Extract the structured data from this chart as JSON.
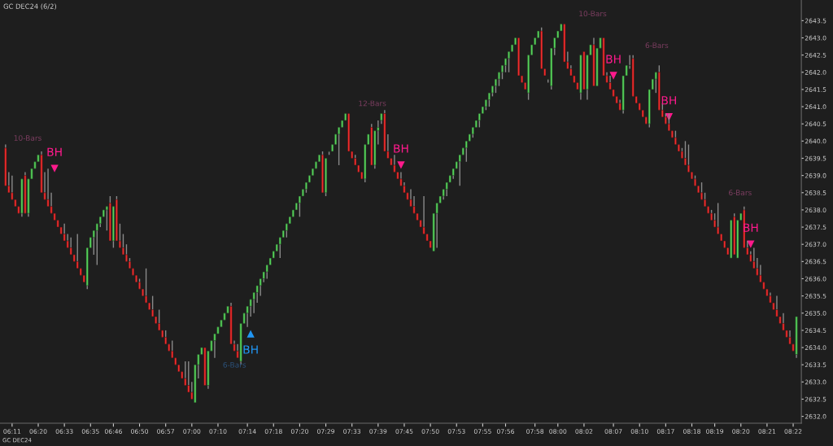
{
  "chart_data": {
    "type": "candlestick",
    "title": "GC DEC24 (6/2)",
    "categories": [
      null,
      null,
      "06:11",
      null,
      null,
      null,
      null,
      null,
      null,
      null,
      "06:20",
      null,
      null,
      null,
      null,
      null,
      null,
      null,
      "06:33",
      null,
      null,
      null,
      null,
      null,
      null,
      null,
      "06:35",
      null,
      null,
      null,
      null,
      null,
      null,
      "06:46",
      null,
      null,
      null,
      null,
      null,
      null,
      null,
      "06:50",
      null,
      null,
      null,
      null,
      null,
      null,
      null,
      "06:57",
      null,
      null,
      null,
      null,
      null,
      null,
      null,
      "07:00",
      null,
      null,
      null,
      null,
      null,
      null,
      null,
      "07:10",
      null,
      null,
      null,
      null,
      null,
      null,
      null,
      null,
      "07:14",
      null,
      null,
      null,
      null,
      null,
      null,
      null,
      "07:18",
      null,
      null,
      null,
      null,
      null,
      null,
      null,
      "07:20",
      null,
      null,
      null,
      null,
      null,
      null,
      null,
      "07:29",
      null,
      null,
      null,
      null,
      null,
      null,
      null,
      "07:33",
      null,
      null,
      null,
      null,
      null,
      null,
      null,
      "07:39",
      null,
      null,
      null,
      null,
      null,
      null,
      null,
      "07:45",
      null,
      null,
      null,
      null,
      null,
      null,
      null,
      "07:50",
      null,
      null,
      null,
      null,
      null,
      null,
      null,
      "07:53",
      null,
      null,
      null,
      null,
      null,
      null,
      null,
      "07:55",
      null,
      null,
      null,
      null,
      null,
      null,
      "07:56",
      null,
      null,
      null,
      null,
      null,
      null,
      null,
      null,
      "07:58",
      null,
      null,
      null,
      null,
      null,
      null,
      "08:00",
      null,
      null,
      null,
      null,
      null,
      null,
      null,
      "08:02",
      null,
      null,
      null,
      null,
      null,
      null,
      null,
      null,
      "08:07",
      null,
      null,
      null,
      null,
      null,
      null,
      null,
      "08:10",
      null,
      null,
      null,
      null,
      null,
      null,
      null,
      "08:17",
      null,
      null,
      null,
      null,
      null,
      null,
      null,
      "08:18",
      null,
      null,
      null,
      null,
      null,
      null,
      "08:19",
      null,
      null,
      null,
      null,
      null,
      null,
      null,
      "08:20",
      null,
      null,
      null,
      null,
      null,
      null,
      null,
      "08:21",
      null,
      null,
      null,
      null,
      null,
      null,
      null,
      "08:22",
      null
    ],
    "series": [
      {
        "ohlc": [
          [
            2639.8,
            2639.9,
            2638.7,
            2638.7
          ],
          [
            2638.7,
            2639.1,
            2638.5,
            2638.5
          ],
          [
            2638.5,
            2639.0,
            2638.3,
            2638.3
          ],
          [
            2638.3,
            2638.3,
            2638.1,
            2638.1
          ],
          [
            2638.1,
            2638.1,
            2637.9,
            2637.9
          ],
          [
            2637.9,
            2638.9,
            2637.8,
            2638.9
          ],
          [
            2639.0,
            2639.1,
            2637.9,
            2637.9
          ],
          [
            2637.9,
            2638.9,
            2637.8,
            2638.9
          ],
          [
            2638.9,
            2639.2,
            2638.9,
            2639.2
          ],
          [
            2639.2,
            2639.4,
            2639.2,
            2639.4
          ],
          [
            2639.4,
            2639.6,
            2639.4,
            2639.6
          ],
          [
            2639.6,
            2639.7,
            2638.5,
            2638.5
          ],
          [
            2638.5,
            2639.1,
            2638.3,
            2638.3
          ],
          [
            2638.3,
            2639.2,
            2638.1,
            2638.1
          ],
          [
            2638.1,
            2638.5,
            2637.9,
            2637.9
          ],
          [
            2637.9,
            2637.9,
            2637.7,
            2637.7
          ],
          [
            2637.7,
            2637.7,
            2637.5,
            2637.5
          ],
          [
            2637.5,
            2637.5,
            2637.3,
            2637.3
          ],
          [
            2637.3,
            2637.6,
            2637.1,
            2637.1
          ],
          [
            2637.1,
            2637.3,
            2636.9,
            2636.9
          ],
          [
            2636.9,
            2637.2,
            2636.7,
            2636.7
          ],
          [
            2636.7,
            2636.7,
            2636.5,
            2636.5
          ],
          [
            2636.5,
            2637.3,
            2636.3,
            2636.3
          ],
          [
            2636.3,
            2636.3,
            2636.1,
            2636.1
          ],
          [
            2636.1,
            2636.1,
            2635.9,
            2635.9
          ],
          [
            2635.8,
            2636.9,
            2635.7,
            2636.9
          ],
          [
            2636.9,
            2637.2,
            2636.9,
            2637.2
          ],
          [
            2637.2,
            2637.4,
            2636.7,
            2637.4
          ],
          [
            2637.4,
            2637.6,
            2636.4,
            2637.6
          ],
          [
            2637.6,
            2637.8,
            2637.5,
            2637.8
          ],
          [
            2637.8,
            2638.0,
            2637.8,
            2638.0
          ],
          [
            2638.0,
            2638.1,
            2637.4,
            2638.1
          ],
          [
            2638.2,
            2638.4,
            2637.1,
            2637.1
          ],
          [
            2637.1,
            2638.1,
            2636.9,
            2638.1
          ],
          [
            2638.3,
            2638.4,
            2637.1,
            2637.1
          ],
          [
            2637.1,
            2637.6,
            2636.9,
            2636.9
          ],
          [
            2636.9,
            2637.3,
            2636.7,
            2636.7
          ],
          [
            2636.7,
            2637.0,
            2636.5,
            2636.5
          ],
          [
            2636.5,
            2636.6,
            2636.3,
            2636.3
          ],
          [
            2636.3,
            2636.3,
            2636.1,
            2636.1
          ],
          [
            2636.1,
            2636.1,
            2635.9,
            2635.9
          ],
          [
            2635.9,
            2636.0,
            2635.7,
            2635.7
          ],
          [
            2635.7,
            2635.7,
            2635.5,
            2635.5
          ],
          [
            2635.5,
            2636.3,
            2635.3,
            2635.3
          ],
          [
            2635.3,
            2635.3,
            2635.1,
            2635.1
          ],
          [
            2635.1,
            2635.5,
            2634.9,
            2634.9
          ],
          [
            2634.9,
            2634.9,
            2634.7,
            2634.7
          ],
          [
            2634.7,
            2635.1,
            2634.5,
            2634.5
          ],
          [
            2634.5,
            2634.5,
            2634.3,
            2634.3
          ],
          [
            2634.3,
            2634.5,
            2634.1,
            2634.1
          ],
          [
            2634.1,
            2634.1,
            2633.9,
            2633.9
          ],
          [
            2633.9,
            2634.2,
            2633.7,
            2633.7
          ],
          [
            2633.7,
            2633.7,
            2633.5,
            2633.5
          ],
          [
            2633.5,
            2633.5,
            2633.3,
            2633.3
          ],
          [
            2633.3,
            2633.3,
            2633.1,
            2633.1
          ],
          [
            2633.1,
            2633.6,
            2632.9,
            2632.9
          ],
          [
            2632.9,
            2633.6,
            2632.7,
            2632.7
          ],
          [
            2632.7,
            2633.0,
            2632.5,
            2632.5
          ],
          [
            2632.4,
            2633.5,
            2632.4,
            2633.5
          ],
          [
            2633.5,
            2633.8,
            2633.1,
            2633.8
          ],
          [
            2633.8,
            2634.0,
            2633.8,
            2634.0
          ],
          [
            2634.0,
            2634.0,
            2632.9,
            2632.9
          ],
          [
            2632.9,
            2633.9,
            2632.8,
            2633.9
          ],
          [
            2633.9,
            2634.2,
            2633.9,
            2634.2
          ],
          [
            2634.2,
            2634.4,
            2633.7,
            2634.4
          ],
          [
            2634.4,
            2634.6,
            2634.4,
            2634.6
          ],
          [
            2634.6,
            2634.8,
            2634.6,
            2634.8
          ],
          [
            2634.8,
            2635.0,
            2634.8,
            2635.0
          ],
          [
            2635.0,
            2635.2,
            2635.0,
            2635.2
          ],
          [
            2635.2,
            2635.3,
            2634.1,
            2634.1
          ],
          [
            2634.1,
            2634.2,
            2633.9,
            2633.9
          ],
          [
            2633.9,
            2634.1,
            2633.7,
            2633.7
          ],
          [
            2633.6,
            2634.7,
            2633.5,
            2634.7
          ],
          [
            2634.7,
            2635.0,
            2634.7,
            2635.0
          ],
          [
            2635.0,
            2635.2,
            2634.6,
            2635.2
          ],
          [
            2635.2,
            2635.4,
            2634.9,
            2635.4
          ],
          [
            2635.4,
            2635.6,
            2635.0,
            2635.6
          ],
          [
            2635.6,
            2635.8,
            2635.3,
            2635.8
          ],
          [
            2635.8,
            2636.0,
            2635.5,
            2636.0
          ],
          [
            2636.0,
            2636.2,
            2635.9,
            2636.2
          ],
          [
            2636.2,
            2636.4,
            2636.0,
            2636.4
          ],
          [
            2636.4,
            2636.6,
            2636.4,
            2636.6
          ],
          [
            2636.6,
            2636.8,
            2636.6,
            2636.8
          ],
          [
            2636.8,
            2637.0,
            2636.8,
            2637.0
          ],
          [
            2637.0,
            2637.2,
            2636.6,
            2637.2
          ],
          [
            2637.2,
            2637.4,
            2637.2,
            2637.4
          ],
          [
            2637.4,
            2637.6,
            2637.2,
            2637.6
          ],
          [
            2637.6,
            2637.8,
            2637.6,
            2637.8
          ],
          [
            2637.8,
            2638.0,
            2637.8,
            2638.0
          ],
          [
            2638.0,
            2638.2,
            2638.0,
            2638.2
          ],
          [
            2638.2,
            2638.4,
            2637.8,
            2638.4
          ],
          [
            2638.4,
            2638.6,
            2638.4,
            2638.6
          ],
          [
            2638.6,
            2638.8,
            2638.5,
            2638.8
          ],
          [
            2638.8,
            2639.0,
            2638.8,
            2639.0
          ],
          [
            2639.0,
            2639.2,
            2639.0,
            2639.2
          ],
          [
            2639.2,
            2639.4,
            2639.2,
            2639.4
          ],
          [
            2639.4,
            2639.6,
            2639.4,
            2639.6
          ],
          [
            2639.6,
            2639.7,
            2638.5,
            2638.5
          ],
          [
            2638.5,
            2639.5,
            2638.4,
            2639.5
          ],
          [
            2639.7,
            2639.7,
            2639.6,
            2639.7
          ],
          [
            2639.7,
            2639.9,
            2639.7,
            2639.9
          ],
          [
            2639.9,
            2640.2,
            2639.9,
            2640.2
          ],
          [
            2640.2,
            2640.4,
            2639.3,
            2640.4
          ],
          [
            2640.4,
            2640.6,
            2640.4,
            2640.6
          ],
          [
            2640.6,
            2640.8,
            2640.6,
            2640.8
          ],
          [
            2640.8,
            2640.8,
            2639.7,
            2639.7
          ],
          [
            2639.7,
            2639.7,
            2639.5,
            2639.5
          ],
          [
            2639.5,
            2639.6,
            2639.3,
            2639.3
          ],
          [
            2639.3,
            2639.3,
            2639.1,
            2639.1
          ],
          [
            2639.1,
            2639.1,
            2638.9,
            2638.9
          ],
          [
            2638.9,
            2639.9,
            2638.8,
            2639.9
          ],
          [
            2639.9,
            2640.2,
            2639.9,
            2640.2
          ],
          [
            2640.4,
            2640.5,
            2639.3,
            2639.3
          ],
          [
            2639.3,
            2640.3,
            2639.2,
            2640.3
          ],
          [
            2640.3,
            2640.6,
            2639.9,
            2640.4
          ],
          [
            2640.6,
            2640.8,
            2640.5,
            2640.8
          ],
          [
            2640.8,
            2640.9,
            2639.7,
            2639.7
          ],
          [
            2639.7,
            2640.2,
            2639.5,
            2639.5
          ],
          [
            2639.5,
            2639.5,
            2639.3,
            2639.3
          ],
          [
            2639.3,
            2639.6,
            2639.1,
            2639.1
          ],
          [
            2639.1,
            2639.1,
            2638.9,
            2638.9
          ],
          [
            2638.9,
            2639.1,
            2638.7,
            2638.7
          ],
          [
            2638.7,
            2638.8,
            2638.5,
            2638.5
          ],
          [
            2638.5,
            2638.5,
            2638.3,
            2638.3
          ],
          [
            2638.3,
            2638.6,
            2638.1,
            2638.1
          ],
          [
            2638.1,
            2638.4,
            2637.9,
            2637.9
          ],
          [
            2637.9,
            2637.9,
            2637.7,
            2637.7
          ],
          [
            2637.7,
            2637.7,
            2637.5,
            2637.5
          ],
          [
            2637.5,
            2638.4,
            2637.3,
            2637.3
          ],
          [
            2637.3,
            2637.3,
            2637.1,
            2637.1
          ],
          [
            2637.1,
            2637.1,
            2636.9,
            2636.9
          ],
          [
            2636.8,
            2637.9,
            2636.8,
            2637.9
          ],
          [
            2637.9,
            2638.2,
            2636.9,
            2638.2
          ],
          [
            2638.2,
            2638.4,
            2638.2,
            2638.4
          ],
          [
            2638.4,
            2638.6,
            2638.3,
            2638.6
          ],
          [
            2638.6,
            2638.8,
            2638.4,
            2638.8
          ],
          [
            2638.8,
            2639.0,
            2638.8,
            2639.0
          ],
          [
            2639.0,
            2639.2,
            2638.9,
            2639.2
          ],
          [
            2639.2,
            2639.4,
            2639.2,
            2639.4
          ],
          [
            2639.4,
            2639.6,
            2638.7,
            2639.6
          ],
          [
            2639.6,
            2639.8,
            2639.6,
            2639.8
          ],
          [
            2639.8,
            2640.0,
            2639.4,
            2640.0
          ],
          [
            2640.0,
            2640.2,
            2640.0,
            2640.2
          ],
          [
            2640.2,
            2640.4,
            2640.1,
            2640.4
          ],
          [
            2640.4,
            2640.6,
            2640.4,
            2640.6
          ],
          [
            2640.6,
            2640.8,
            2640.4,
            2640.8
          ],
          [
            2640.8,
            2641.0,
            2640.8,
            2641.0
          ],
          [
            2641.0,
            2641.2,
            2640.9,
            2641.2
          ],
          [
            2641.2,
            2641.4,
            2641.0,
            2641.4
          ],
          [
            2641.4,
            2641.6,
            2641.3,
            2641.6
          ],
          [
            2641.6,
            2641.8,
            2641.4,
            2641.8
          ],
          [
            2641.8,
            2642.0,
            2641.6,
            2642.0
          ],
          [
            2642.0,
            2642.2,
            2641.8,
            2642.2
          ],
          [
            2642.2,
            2642.4,
            2642.0,
            2642.4
          ],
          [
            2642.4,
            2642.6,
            2642.0,
            2642.6
          ],
          [
            2642.6,
            2642.8,
            2642.6,
            2642.8
          ],
          [
            2642.8,
            2643.0,
            2642.8,
            2643.0
          ],
          [
            2643.0,
            2643.0,
            2641.9,
            2641.9
          ],
          [
            2641.9,
            2641.9,
            2641.7,
            2641.7
          ],
          [
            2641.7,
            2641.7,
            2641.5,
            2641.5
          ],
          [
            2641.4,
            2642.5,
            2641.2,
            2642.5
          ],
          [
            2642.5,
            2642.8,
            2642.5,
            2642.8
          ],
          [
            2642.8,
            2643.0,
            2642.8,
            2643.0
          ],
          [
            2643.0,
            2643.2,
            2643.0,
            2643.2
          ],
          [
            2643.2,
            2643.3,
            2642.1,
            2642.1
          ],
          [
            2642.1,
            2642.1,
            2641.9,
            2641.9
          ],
          [
            2641.8,
            2641.8,
            2641.7,
            2641.8
          ],
          [
            2641.6,
            2642.7,
            2641.5,
            2642.7
          ],
          [
            2642.7,
            2643.0,
            2642.5,
            2643.0
          ],
          [
            2643.0,
            2643.2,
            2643.0,
            2643.2
          ],
          [
            2643.2,
            2643.4,
            2643.2,
            2643.4
          ],
          [
            2643.4,
            2643.4,
            2642.3,
            2642.3
          ],
          [
            2642.3,
            2642.6,
            2642.1,
            2642.1
          ],
          [
            2642.1,
            2642.2,
            2641.9,
            2641.9
          ],
          [
            2641.9,
            2641.9,
            2641.7,
            2641.7
          ],
          [
            2641.7,
            2641.7,
            2641.5,
            2641.5
          ],
          [
            2641.4,
            2642.5,
            2641.2,
            2642.5
          ],
          [
            2642.6,
            2642.6,
            2641.5,
            2641.5
          ],
          [
            2641.5,
            2642.5,
            2641.2,
            2642.5
          ],
          [
            2642.5,
            2642.8,
            2642.5,
            2642.8
          ],
          [
            2642.8,
            2643.0,
            2641.6,
            2641.6
          ],
          [
            2641.6,
            2642.7,
            2641.6,
            2642.7
          ],
          [
            2642.7,
            2643.0,
            2642.7,
            2643.0
          ],
          [
            2643.0,
            2643.0,
            2641.9,
            2641.9
          ],
          [
            2641.9,
            2642.0,
            2641.7,
            2641.7
          ],
          [
            2641.7,
            2641.9,
            2641.5,
            2641.5
          ],
          [
            2641.5,
            2641.5,
            2641.3,
            2641.3
          ],
          [
            2641.3,
            2641.3,
            2641.1,
            2641.1
          ],
          [
            2641.1,
            2641.2,
            2640.9,
            2640.9
          ],
          [
            2640.9,
            2641.9,
            2640.8,
            2641.9
          ],
          [
            2641.9,
            2642.2,
            2641.9,
            2642.2
          ],
          [
            2642.2,
            2642.5,
            2642.1,
            2642.2
          ],
          [
            2642.4,
            2642.5,
            2641.3,
            2641.3
          ],
          [
            2641.3,
            2641.3,
            2641.1,
            2641.1
          ],
          [
            2641.1,
            2641.1,
            2640.9,
            2640.9
          ],
          [
            2640.9,
            2640.9,
            2640.7,
            2640.7
          ],
          [
            2640.7,
            2640.7,
            2640.5,
            2640.5
          ],
          [
            2640.5,
            2641.5,
            2640.4,
            2641.5
          ],
          [
            2641.5,
            2641.8,
            2641.5,
            2641.8
          ],
          [
            2641.8,
            2642.0,
            2641.4,
            2642.0
          ],
          [
            2642.0,
            2642.2,
            2640.9,
            2640.9
          ],
          [
            2640.9,
            2641.1,
            2640.7,
            2640.7
          ],
          [
            2640.7,
            2640.8,
            2640.5,
            2640.5
          ],
          [
            2640.5,
            2640.8,
            2640.3,
            2640.3
          ],
          [
            2640.3,
            2640.3,
            2640.1,
            2640.1
          ],
          [
            2640.1,
            2640.3,
            2639.9,
            2639.9
          ],
          [
            2639.9,
            2639.9,
            2639.7,
            2639.7
          ],
          [
            2639.7,
            2639.8,
            2639.5,
            2639.5
          ],
          [
            2639.5,
            2640.0,
            2639.3,
            2639.3
          ],
          [
            2639.3,
            2639.9,
            2639.1,
            2639.1
          ],
          [
            2639.1,
            2639.1,
            2638.9,
            2638.9
          ],
          [
            2638.9,
            2639.0,
            2638.7,
            2638.7
          ],
          [
            2638.7,
            2638.7,
            2638.5,
            2638.5
          ],
          [
            2638.5,
            2638.8,
            2638.3,
            2638.3
          ],
          [
            2638.3,
            2638.5,
            2638.1,
            2638.1
          ],
          [
            2638.1,
            2638.1,
            2637.9,
            2637.9
          ],
          [
            2637.9,
            2638.0,
            2637.7,
            2637.7
          ],
          [
            2637.7,
            2637.9,
            2637.5,
            2637.5
          ],
          [
            2637.5,
            2638.2,
            2637.3,
            2637.3
          ],
          [
            2637.3,
            2637.3,
            2637.1,
            2637.1
          ],
          [
            2637.1,
            2637.1,
            2636.9,
            2636.9
          ],
          [
            2636.9,
            2636.9,
            2636.7,
            2636.7
          ],
          [
            2636.6,
            2637.7,
            2636.6,
            2637.7
          ],
          [
            2637.8,
            2637.9,
            2636.7,
            2636.7
          ],
          [
            2636.6,
            2637.7,
            2636.6,
            2637.7
          ],
          [
            2637.7,
            2637.9,
            2637.7,
            2637.9
          ],
          [
            2638.0,
            2638.1,
            2636.9,
            2636.9
          ],
          [
            2636.9,
            2637.1,
            2636.7,
            2636.7
          ],
          [
            2636.7,
            2636.8,
            2636.5,
            2636.5
          ],
          [
            2636.5,
            2636.9,
            2636.3,
            2636.3
          ],
          [
            2636.3,
            2636.6,
            2636.1,
            2636.1
          ],
          [
            2636.1,
            2636.4,
            2635.9,
            2635.9
          ],
          [
            2635.9,
            2635.9,
            2635.7,
            2635.7
          ],
          [
            2635.7,
            2635.7,
            2635.5,
            2635.5
          ],
          [
            2635.5,
            2635.6,
            2635.3,
            2635.3
          ],
          [
            2635.3,
            2635.3,
            2635.1,
            2635.1
          ],
          [
            2635.1,
            2635.5,
            2634.9,
            2634.9
          ],
          [
            2634.9,
            2634.9,
            2634.7,
            2634.7
          ],
          [
            2634.7,
            2635.0,
            2634.5,
            2634.5
          ],
          [
            2634.5,
            2634.5,
            2634.3,
            2634.3
          ],
          [
            2634.3,
            2634.5,
            2634.1,
            2634.1
          ],
          [
            2634.1,
            2634.1,
            2633.9,
            2633.9
          ],
          [
            2633.8,
            2634.9,
            2633.7,
            2634.9
          ]
        ]
      },
      {
        "type": "scatter",
        "name": "BH",
        "color": "#ff1a8c",
        "marker": "triangle",
        "values": [
          null,
          null,
          null,
          null,
          null,
          null,
          null,
          null,
          null,
          null,
          null,
          null,
          null,
          null,
          null,
          2639.2,
          null,
          null,
          null,
          null,
          null,
          null,
          null,
          null,
          null,
          null,
          null,
          null,
          null,
          null,
          null,
          null,
          null,
          null,
          null,
          null,
          null,
          null,
          null,
          null,
          null,
          null,
          null,
          null,
          null,
          null,
          null,
          null,
          null,
          null,
          null,
          null,
          null,
          null,
          null,
          null,
          null,
          null,
          null,
          null,
          null,
          null,
          null,
          null,
          null,
          null,
          null,
          null,
          null,
          null,
          null,
          null,
          null,
          null,
          null,
          null,
          null,
          null,
          null,
          null,
          null,
          null,
          null,
          null,
          null,
          null,
          null,
          null,
          null,
          null,
          null,
          null,
          null,
          null,
          null,
          null,
          null,
          null,
          null,
          null,
          null,
          null,
          null,
          null,
          null,
          null,
          null,
          null,
          null,
          null,
          null,
          null,
          null,
          null,
          null,
          null,
          null,
          null,
          null,
          null,
          null,
          2639.3,
          null,
          null,
          null,
          null,
          null,
          null,
          null,
          null,
          null,
          null,
          null,
          null,
          null,
          null,
          null,
          null,
          null,
          null,
          null,
          null,
          null,
          null,
          null,
          null,
          null,
          null,
          null,
          null,
          null,
          null,
          null,
          null,
          null,
          null,
          null,
          null,
          null,
          null,
          null,
          null,
          null,
          null,
          null,
          null,
          null,
          null,
          null,
          null,
          null,
          null,
          null,
          null,
          null,
          null,
          null,
          null,
          null,
          null,
          null,
          null,
          null,
          null,
          null,
          null,
          2641.9,
          null,
          null,
          null,
          null,
          null,
          null,
          null,
          null,
          null,
          null,
          null,
          null,
          null,
          null,
          null,
          null,
          2640.7,
          null,
          null,
          null,
          null,
          null,
          null,
          null,
          null,
          null,
          null,
          null,
          null,
          null,
          null,
          null,
          null,
          null,
          null,
          null,
          null,
          null,
          null,
          null,
          null,
          2637.0,
          null,
          null,
          null,
          null,
          null,
          null,
          null,
          null,
          null,
          null,
          null,
          null,
          null,
          null
        ]
      },
      {
        "type": "scatter",
        "name": "BH",
        "color": "#2196f3",
        "marker": "triangle",
        "values": [
          null,
          null,
          null,
          null,
          null,
          null,
          null,
          null,
          null,
          null,
          null,
          null,
          null,
          null,
          null,
          null,
          null,
          null,
          null,
          null,
          null,
          null,
          null,
          null,
          null,
          null,
          null,
          null,
          null,
          null,
          null,
          null,
          null,
          null,
          null,
          null,
          null,
          null,
          null,
          null,
          null,
          null,
          null,
          null,
          null,
          null,
          null,
          null,
          null,
          null,
          null,
          null,
          null,
          null,
          null,
          null,
          null,
          null,
          null,
          null,
          null,
          null,
          null,
          null,
          null,
          null,
          null,
          null,
          null,
          null,
          null,
          null,
          null,
          null,
          null,
          2634.4,
          null,
          null,
          null,
          null,
          null,
          null,
          null,
          null,
          null,
          null,
          null,
          null,
          null,
          null,
          null,
          null,
          null,
          null,
          null,
          null,
          null,
          null,
          null,
          null,
          null,
          null,
          null,
          null,
          null,
          null,
          null,
          null,
          null,
          null,
          null,
          null,
          null,
          null,
          null,
          null,
          null,
          null,
          null,
          null,
          null,
          null,
          null,
          null,
          null,
          null,
          null,
          null,
          null,
          null,
          null,
          null,
          null,
          null,
          null,
          null,
          null,
          null,
          null,
          null,
          null,
          null,
          null,
          null,
          null,
          null,
          null,
          null,
          null,
          null,
          null,
          null,
          null,
          null,
          null,
          null,
          null,
          null,
          null,
          null,
          null,
          null,
          null,
          null,
          null,
          null,
          null,
          null,
          null,
          null,
          null,
          null,
          null,
          null,
          null,
          null,
          null,
          null,
          null,
          null,
          null,
          null,
          null,
          null,
          null,
          null,
          null,
          null,
          null,
          null,
          null,
          null,
          null,
          null,
          null,
          null,
          null,
          null,
          null,
          null,
          null,
          null,
          null,
          null,
          null,
          null,
          null,
          null,
          null,
          null,
          null,
          null,
          null,
          null,
          null,
          null,
          null,
          null,
          null,
          null,
          null,
          null,
          null,
          null,
          null,
          null,
          null,
          null,
          null,
          null,
          null,
          null,
          null,
          null,
          null,
          null,
          null,
          null,
          null,
          null,
          null,
          null,
          null
        ]
      }
    ],
    "annotations": [
      "10-Bars",
      "6-Bars",
      "12-Bars",
      "10-Bars",
      "6-Bars",
      "6-Bars",
      "GC DEC24"
    ],
    "ylim": [
      2631.8,
      2644.1
    ],
    "yticks": [
      {
        "value": 2632,
        "label": "2632.0"
      },
      2632.5,
      {
        "value": 2633,
        "label": "2633.0"
      },
      2633.5,
      {
        "value": 2634,
        "label": "2634.0"
      },
      2634.5,
      {
        "value": 2635,
        "label": "2635.0"
      },
      2635.5,
      {
        "value": 2636,
        "label": "2636.0"
      },
      2636.5,
      {
        "value": 2637,
        "label": "2637.0"
      },
      2637.5,
      {
        "value": 2638,
        "label": "2638.0"
      },
      2638.5,
      {
        "value": 2639,
        "label": "2639.0"
      },
      2639.5,
      {
        "value": 2640,
        "label": "2640.0"
      },
      2640.5,
      {
        "value": 2641,
        "label": "2641.0"
      },
      2641.5,
      {
        "value": 2642,
        "label": "2642.0"
      },
      2642.5,
      {
        "value": 2643,
        "label": "2643.0"
      },
      2643.5
    ],
    "grid": false,
    "legend": false
  }
}
